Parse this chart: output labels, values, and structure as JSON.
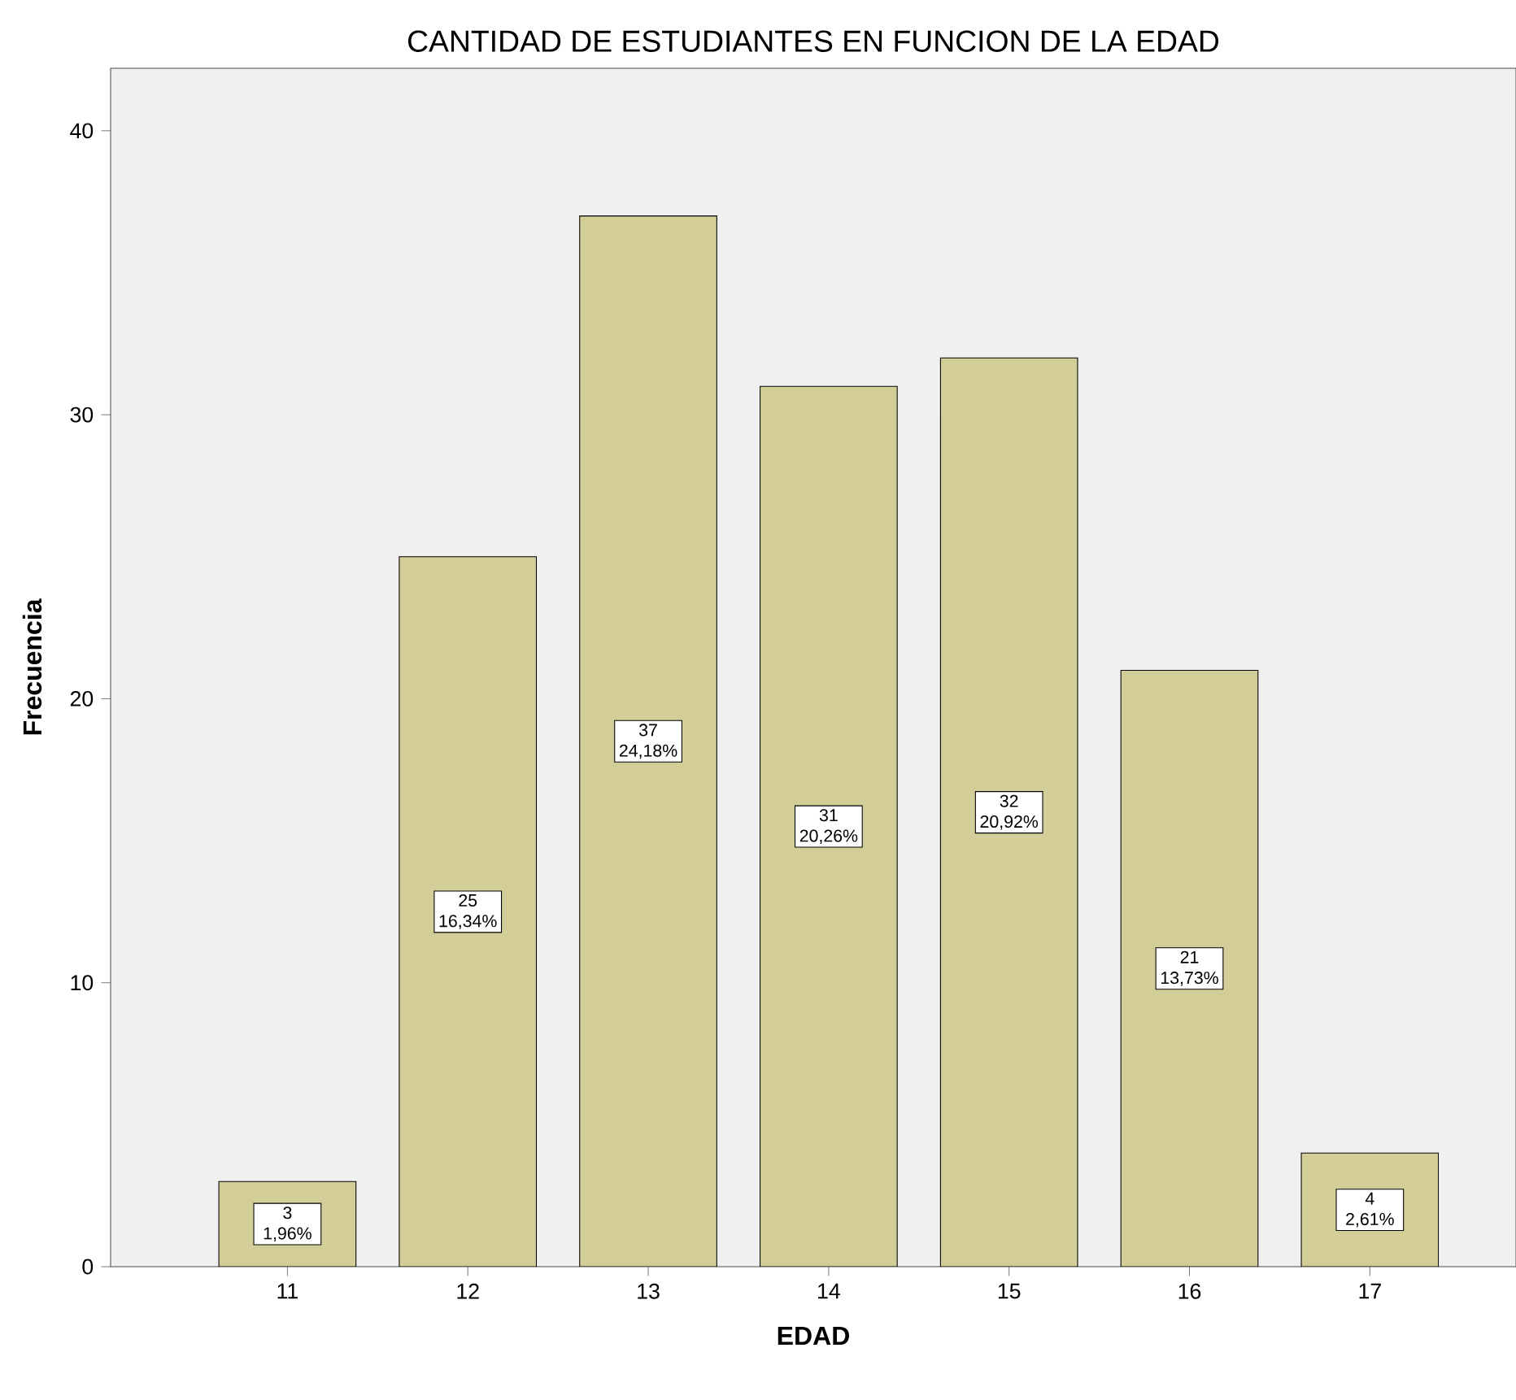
{
  "chart_data": {
    "type": "bar",
    "title": "CANTIDAD DE ESTUDIANTES EN FUNCION DE LA EDAD",
    "xlabel": "EDAD",
    "ylabel": "Frecuencia",
    "categories": [
      "11",
      "12",
      "13",
      "14",
      "15",
      "16",
      "17"
    ],
    "values": [
      3,
      25,
      37,
      31,
      32,
      21,
      4
    ],
    "value_labels": [
      "3 1,96%",
      "25 16,34%",
      "37 24,18%",
      "31 20,26%",
      "32 20,92%",
      "21 13,73%",
      "4 2,61%"
    ],
    "color": "#d3ce98",
    "ylim": [
      0,
      42.2
    ],
    "yticks": [
      0,
      10,
      20,
      30,
      40
    ]
  }
}
